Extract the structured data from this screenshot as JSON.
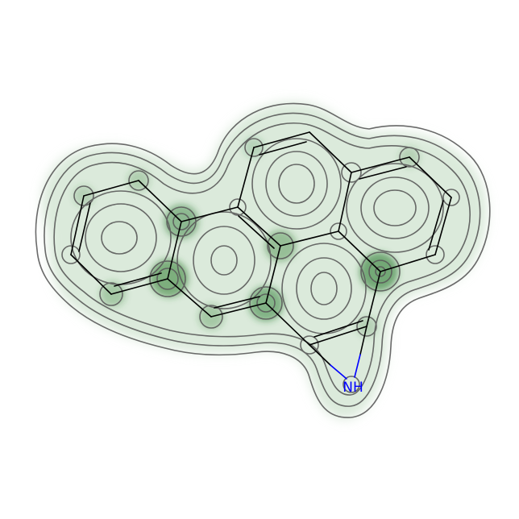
{
  "figure": {
    "kind": "molecule-similarity-map",
    "background": "#ffffff",
    "colors": {
      "bond": "#000000",
      "nitrogen": "#0000ff",
      "contour_line": "#555555",
      "weight_positive": "#2e7d32"
    }
  },
  "atom_labels": {
    "nitrogen": "NH"
  }
}
